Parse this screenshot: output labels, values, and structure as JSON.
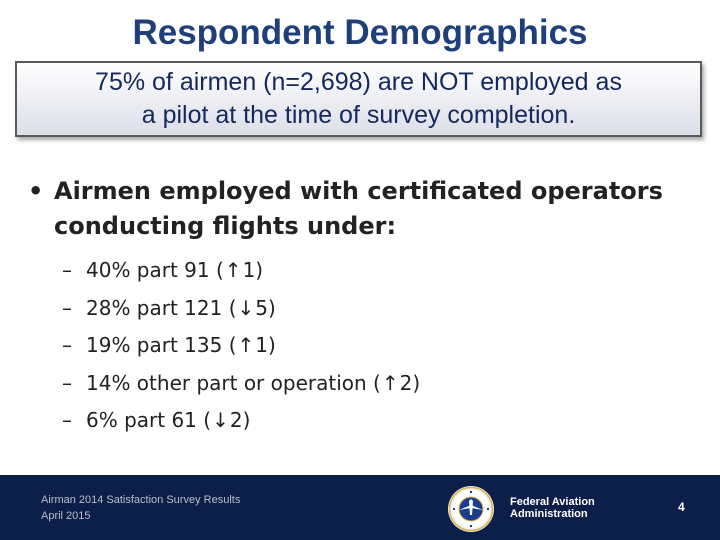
{
  "slide": {
    "title": "Respondent Demographics",
    "callout_line1": "75% of airmen (n=2,698) are NOT employed as",
    "callout_line2": "a pilot at the time of survey completion.",
    "bullet_marker": "•",
    "main_bullet_line1": "Airmen employed with certificated operators",
    "main_bullet_line2": "conducting flights under:",
    "sub_items": [
      {
        "dash": "–",
        "pre": "40% part 91 (",
        "arrow": "↑",
        "post": "1)"
      },
      {
        "dash": "–",
        "pre": "28% part 121 (",
        "arrow": "↓",
        "post": "5)"
      },
      {
        "dash": "–",
        "pre": "19% part 135 (",
        "arrow": "↑",
        "post": "1)"
      },
      {
        "dash": "–",
        "pre": "14% other part or operation (",
        "arrow": "↑",
        "post": "2)"
      },
      {
        "dash": "–",
        "pre": "6% part 61 (",
        "arrow": "↓",
        "post": "2)"
      }
    ]
  },
  "footer": {
    "survey_title": "Airman 2014 Satisfaction Survey Results",
    "date": "April 2015",
    "agency_line1": "Federal Aviation",
    "agency_line2": "Administration",
    "page_number": "4",
    "seal_icon": "faa-seal-icon",
    "bar_color": "#0c1f49"
  }
}
